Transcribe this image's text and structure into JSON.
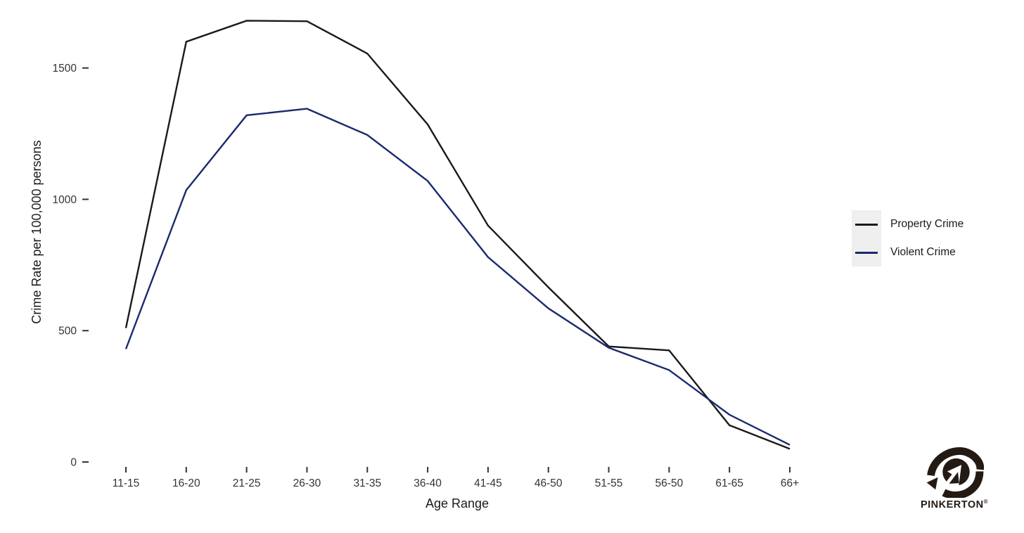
{
  "chart_data": {
    "type": "line",
    "title": "",
    "xlabel": "Age Range",
    "ylabel": "Crime Rate per 100,000 persons",
    "categories": [
      "11-15",
      "16-20",
      "21-25",
      "26-30",
      "31-35",
      "36-40",
      "41-45",
      "46-50",
      "51-55",
      "56-50",
      "61-65",
      "66+"
    ],
    "series": [
      {
        "name": "Property Crime",
        "color": "#1a1a1a",
        "values": [
          510,
          1600,
          1680,
          1678,
          1555,
          1285,
          900,
          665,
          440,
          425,
          140,
          50
        ]
      },
      {
        "name": "Violent Crime",
        "color": "#1b2a6e",
        "values": [
          430,
          1035,
          1320,
          1345,
          1245,
          1070,
          780,
          585,
          435,
          350,
          180,
          65
        ]
      }
    ],
    "y_ticks": [
      0,
      500,
      1000,
      1500
    ],
    "ylim": [
      0,
      1750
    ],
    "grid": false,
    "legend_position": "right",
    "axis_text_color": "#333333",
    "legend_key_background": "#efefef"
  },
  "branding": {
    "logo_name": "pinkerton-eye-logo",
    "logo_text": "PINKERTON",
    "registered_mark": "®",
    "logo_color": "#241a14"
  }
}
